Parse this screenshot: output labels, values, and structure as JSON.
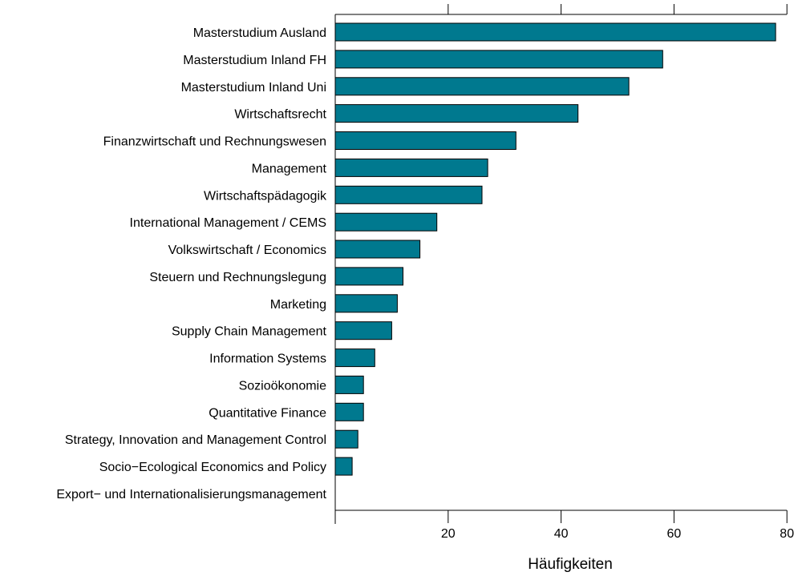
{
  "chart_data": {
    "type": "bar",
    "orientation": "horizontal",
    "categories": [
      "Masterstudium Ausland",
      "Masterstudium Inland FH",
      "Masterstudium Inland Uni",
      "Wirtschaftsrecht",
      "Finanzwirtschaft und Rechnungswesen",
      "Management",
      "Wirtschaftspädagogik",
      "International Management / CEMS",
      "Volkswirtschaft / Economics",
      "Steuern und Rechnungslegung",
      "Marketing",
      "Supply Chain Management",
      "Information Systems",
      "Sozioökonomie",
      "Quantitative Finance",
      "Strategy, Innovation and Management Control",
      "Socio−Ecological Economics and Policy",
      "Export− und Internationalisierungsmanagement"
    ],
    "values": [
      78,
      58,
      52,
      43,
      32,
      27,
      26,
      18,
      15,
      12,
      11,
      10,
      7,
      5,
      5,
      4,
      3,
      0
    ],
    "xlabel": "Häufigkeiten",
    "ylabel": "",
    "title": "",
    "xlim": [
      0,
      80
    ],
    "xticks": [
      20,
      40,
      60,
      80
    ],
    "bar_color": "#00798f",
    "grid": false,
    "axis_top_ticks": true
  }
}
